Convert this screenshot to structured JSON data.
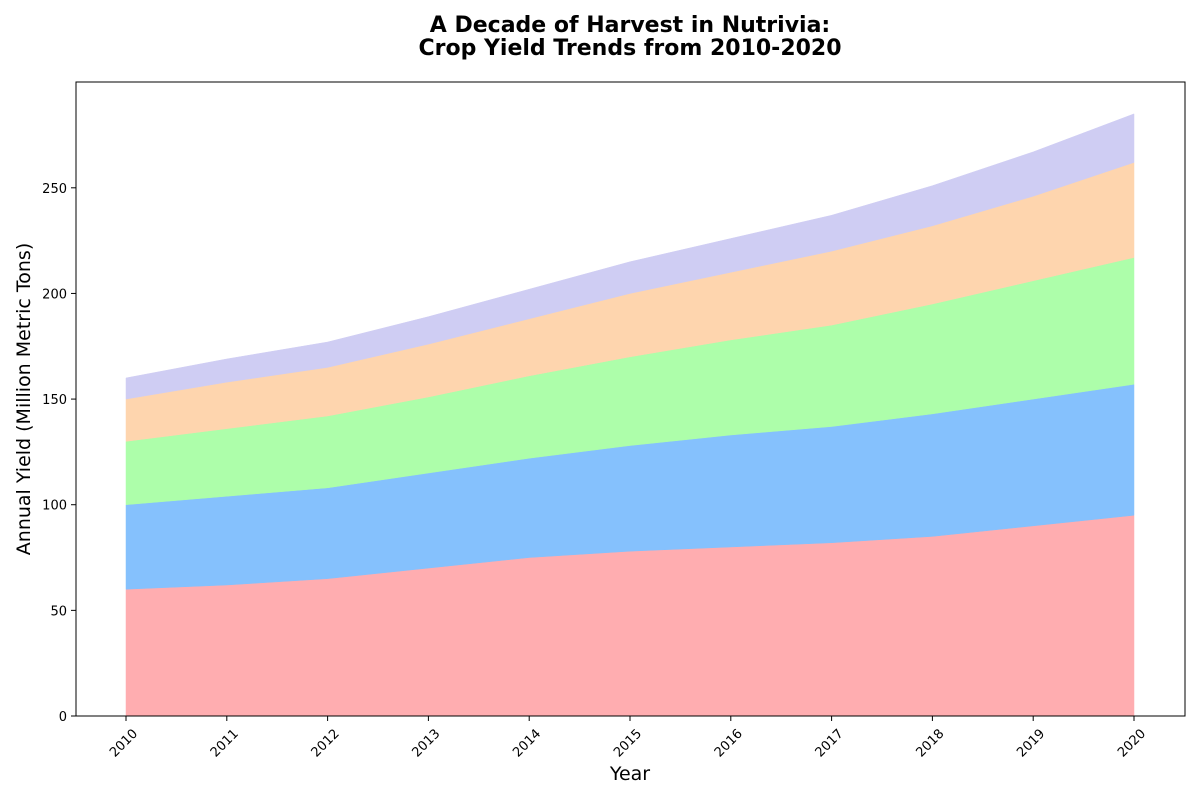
{
  "chart_data": {
    "type": "area",
    "stacked": true,
    "title_lines": [
      "A Decade of Harvest in Nutrivia:",
      "Crop Yield Trends from 2010-2020"
    ],
    "xlabel": "Year",
    "ylabel": "Annual Yield (Million Metric Tons)",
    "x": [
      "2010",
      "2011",
      "2012",
      "2013",
      "2014",
      "2015",
      "2016",
      "2017",
      "2018",
      "2019",
      "2020"
    ],
    "ylim": [
      0,
      300
    ],
    "yticks": [
      0,
      50,
      100,
      150,
      200,
      250
    ],
    "xtick_rotation": -45,
    "grid": false,
    "legend": "none",
    "series": [
      {
        "color": "#ffadb0",
        "values": [
          60,
          62,
          65,
          70,
          75,
          78,
          80,
          82,
          85,
          90,
          95
        ]
      },
      {
        "color": "#85c1fd",
        "values": [
          40,
          42,
          43,
          45,
          47,
          50,
          53,
          55,
          58,
          60,
          62
        ]
      },
      {
        "color": "#adfeaa",
        "values": [
          30,
          32,
          34,
          36,
          39,
          42,
          45,
          48,
          52,
          56,
          60
        ]
      },
      {
        "color": "#fed5ae",
        "values": [
          20,
          22,
          23,
          25,
          27,
          30,
          32,
          35,
          37,
          40,
          45
        ]
      },
      {
        "color": "#cfcdf3",
        "values": [
          10,
          11,
          12,
          13,
          14,
          15,
          16,
          17,
          19,
          21,
          23
        ]
      }
    ]
  }
}
